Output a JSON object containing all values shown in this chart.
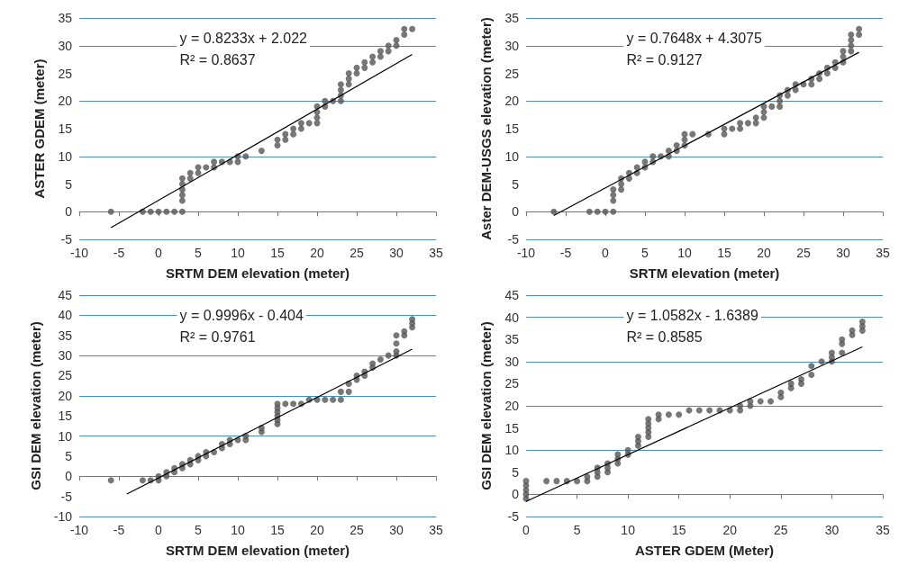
{
  "chart_data": [
    {
      "type": "scatter",
      "xlabel": "SRTM DEM elevation (meter)",
      "ylabel": "ASTER GDEM (meter)",
      "annotations": [
        "y = 0.8233x + 2.022",
        "R² = 0.8637"
      ],
      "xlim": [
        -10,
        35
      ],
      "xticks": [
        -10,
        -5,
        0,
        5,
        10,
        15,
        20,
        25,
        30,
        35
      ],
      "ylim": [
        -5,
        35
      ],
      "yticks": [
        -5,
        0,
        5,
        10,
        15,
        20,
        25,
        30,
        35
      ],
      "grid": "y",
      "marker": "circle",
      "series": [
        {
          "type": "scatter",
          "color": "#555555",
          "x": [
            -6,
            -2,
            -1,
            0,
            1,
            2,
            3,
            3,
            3,
            3,
            3,
            3,
            4,
            4,
            5,
            5,
            6,
            7,
            7,
            8,
            9,
            10,
            10,
            11,
            13,
            15,
            15,
            16,
            16,
            17,
            17,
            18,
            18,
            19,
            20,
            20,
            20,
            20,
            21,
            21,
            22,
            23,
            23,
            23,
            23,
            24,
            24,
            24,
            25,
            25,
            26,
            26,
            27,
            27,
            28,
            28,
            29,
            29,
            30,
            30,
            31,
            31,
            32
          ],
          "values": [
            0,
            0,
            0,
            0,
            0,
            0,
            0,
            2,
            3,
            4,
            5,
            6,
            6,
            7,
            7,
            8,
            8,
            8,
            9,
            9,
            9,
            9,
            10,
            10,
            11,
            12,
            13,
            13,
            14,
            14,
            15,
            15,
            16,
            16,
            16,
            17,
            18,
            19,
            19,
            20,
            20,
            20,
            21,
            22,
            23,
            23,
            24,
            25,
            25,
            26,
            26,
            27,
            27,
            28,
            28,
            29,
            29,
            30,
            30,
            31,
            32,
            33,
            33
          ]
        },
        {
          "type": "line",
          "color": "#000000",
          "marker": "none",
          "x": [
            -6,
            32
          ],
          "values": [
            -2.9,
            28.4
          ]
        }
      ]
    },
    {
      "type": "scatter",
      "xlabel": "SRTM elevation (meter)",
      "ylabel": "Aster DEM-USGS elevation (meter)",
      "annotations": [
        "y = 0.7648x + 4.3075",
        "R² = 0.9127"
      ],
      "xlim": [
        -10,
        35
      ],
      "xticks": [
        -10,
        -5,
        0,
        5,
        10,
        15,
        20,
        25,
        30,
        35
      ],
      "ylim": [
        -5,
        35
      ],
      "yticks": [
        -5,
        0,
        5,
        10,
        15,
        20,
        25,
        30,
        35
      ],
      "grid": "y",
      "marker": "circle",
      "series": [
        {
          "type": "scatter",
          "color": "#555555",
          "x": [
            -6.5,
            -2,
            -1,
            0,
            1,
            1,
            1,
            1,
            2,
            2,
            2,
            3,
            3,
            4,
            4,
            5,
            5,
            6,
            6,
            7,
            8,
            8,
            9,
            9,
            10,
            10,
            10,
            11,
            13,
            15,
            15,
            16,
            17,
            17,
            18,
            19,
            19,
            20,
            20,
            20,
            21,
            22,
            22,
            22,
            23,
            23,
            24,
            24,
            25,
            26,
            26,
            27,
            27,
            28,
            28,
            29,
            29,
            30,
            30,
            30,
            31,
            31,
            31,
            31,
            32,
            32
          ],
          "values": [
            0,
            0,
            0,
            0,
            0,
            2,
            3,
            4,
            4,
            5,
            6,
            6,
            7,
            7,
            8,
            8,
            9,
            9,
            10,
            10,
            10,
            11,
            11,
            12,
            12,
            13,
            14,
            14,
            14,
            14,
            15,
            15,
            15,
            16,
            16,
            16,
            17,
            17,
            18,
            19,
            19,
            19,
            20,
            21,
            21,
            22,
            22,
            23,
            23,
            23,
            24,
            24,
            25,
            25,
            26,
            26,
            27,
            27,
            28,
            29,
            29,
            30,
            31,
            32,
            32,
            33
          ]
        },
        {
          "type": "line",
          "color": "#000000",
          "marker": "none",
          "x": [
            -6.5,
            32
          ],
          "values": [
            -0.7,
            28.8
          ]
        }
      ]
    },
    {
      "type": "scatter",
      "xlabel": "SRTM DEM elevation (meter)",
      "ylabel": "GSI DEM elevation (meter)",
      "annotations": [
        "y = 0.9996x - 0.404",
        "R² = 0.9761"
      ],
      "xlim": [
        -10,
        35
      ],
      "xticks": [
        -10,
        -5,
        0,
        5,
        10,
        15,
        20,
        25,
        30,
        35
      ],
      "ylim": [
        -10,
        45
      ],
      "yticks": [
        -10,
        -5,
        0,
        5,
        10,
        15,
        20,
        25,
        30,
        35,
        40,
        45
      ],
      "grid": "y",
      "marker": "circle",
      "series": [
        {
          "type": "scatter",
          "color": "#555555",
          "x": [
            -6,
            -2,
            -1,
            0,
            0,
            1,
            1,
            2,
            2,
            3,
            3,
            4,
            4,
            5,
            5,
            6,
            6,
            7,
            8,
            8,
            9,
            9,
            10,
            11,
            11,
            13,
            13,
            15,
            15,
            15,
            15,
            15,
            15,
            16,
            17,
            18,
            19,
            20,
            21,
            22,
            23,
            23,
            24,
            24,
            25,
            25,
            26,
            26,
            27,
            27,
            28,
            29,
            30,
            30,
            30,
            30,
            31,
            31,
            32,
            32,
            32
          ],
          "values": [
            -1,
            -1,
            -1,
            -1,
            0,
            0,
            1,
            1,
            2,
            2,
            3,
            3,
            4,
            4,
            5,
            5,
            6,
            6,
            7,
            8,
            8,
            9,
            9,
            9,
            10,
            11,
            12,
            13,
            14,
            15,
            16,
            17,
            18,
            18,
            18,
            18,
            19,
            19,
            19,
            19,
            19,
            21,
            21,
            23,
            24,
            25,
            25,
            26,
            27,
            28,
            29,
            30,
            30,
            31,
            33,
            35,
            35,
            36,
            37,
            38,
            39
          ]
        },
        {
          "type": "line",
          "color": "#000000",
          "marker": "none",
          "x": [
            -4,
            32
          ],
          "values": [
            -4.4,
            31.6
          ]
        }
      ]
    },
    {
      "type": "scatter",
      "xlabel": "ASTER GDEM (Meter)",
      "ylabel": "GSI DEM elevation (meter)",
      "annotations": [
        "y = 1.0582x - 1.6389",
        "R² = 0.8585"
      ],
      "xlim": [
        0,
        35
      ],
      "xticks": [
        0,
        5,
        10,
        15,
        20,
        25,
        30,
        35
      ],
      "ylim": [
        -5,
        45
      ],
      "yticks": [
        -5,
        0,
        5,
        10,
        15,
        20,
        25,
        30,
        35,
        40,
        45
      ],
      "grid": "y",
      "marker": "circle",
      "series": [
        {
          "type": "scatter",
          "color": "#555555",
          "x": [
            0,
            0,
            0,
            0,
            0,
            2,
            3,
            4,
            5,
            6,
            6,
            7,
            7,
            7,
            8,
            8,
            8,
            9,
            9,
            9,
            10,
            10,
            11,
            11,
            11,
            12,
            12,
            12,
            12,
            12,
            13,
            13,
            14,
            15,
            16,
            17,
            18,
            19,
            20,
            21,
            21,
            22,
            22,
            23,
            24,
            25,
            25,
            26,
            26,
            27,
            27,
            28,
            28,
            29,
            30,
            30,
            30,
            31,
            31,
            31,
            32,
            32,
            33,
            33,
            33
          ],
          "values": [
            -1,
            0,
            1,
            2,
            3,
            3,
            3,
            3,
            3,
            3,
            4,
            4,
            5,
            6,
            5,
            6,
            7,
            7,
            8,
            9,
            9,
            10,
            11,
            12,
            13,
            13,
            14,
            15,
            16,
            17,
            17,
            18,
            18,
            18,
            19,
            19,
            19,
            19,
            19,
            19,
            20,
            20,
            21,
            21,
            21,
            22,
            23,
            24,
            25,
            25,
            26,
            27,
            29,
            30,
            30,
            31,
            32,
            32,
            34,
            35,
            36,
            37,
            37,
            38,
            39
          ]
        },
        {
          "type": "line",
          "color": "#000000",
          "marker": "none",
          "x": [
            0,
            33
          ],
          "values": [
            -1.6,
            33.3
          ]
        }
      ]
    }
  ]
}
